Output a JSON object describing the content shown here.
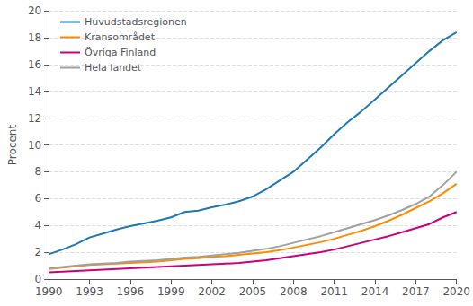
{
  "chart_data": {
    "type": "line",
    "ylabel": "Procent",
    "x": [
      1990,
      1991,
      1992,
      1993,
      1994,
      1995,
      1996,
      1997,
      1998,
      1999,
      2000,
      2001,
      2002,
      2003,
      2004,
      2005,
      2006,
      2007,
      2008,
      2009,
      2010,
      2011,
      2012,
      2013,
      2014,
      2015,
      2016,
      2017,
      2018,
      2019,
      2020
    ],
    "series": [
      {
        "name": "Huvudstadsregionen",
        "color": "#1f78b4",
        "values": [
          1.85,
          2.2,
          2.6,
          3.1,
          3.4,
          3.7,
          3.95,
          4.15,
          4.35,
          4.6,
          5.0,
          5.1,
          5.35,
          5.55,
          5.8,
          6.15,
          6.7,
          7.35,
          8.0,
          8.9,
          9.8,
          10.8,
          11.7,
          12.5,
          13.4,
          14.3,
          15.2,
          16.1,
          17.0,
          17.8,
          18.4
        ]
      },
      {
        "name": "Kransområdet",
        "color": "#ff8c00",
        "values": [
          0.75,
          0.85,
          0.95,
          1.05,
          1.1,
          1.15,
          1.2,
          1.25,
          1.3,
          1.4,
          1.5,
          1.55,
          1.65,
          1.7,
          1.8,
          1.9,
          2.0,
          2.15,
          2.35,
          2.55,
          2.75,
          3.0,
          3.3,
          3.6,
          3.95,
          4.35,
          4.8,
          5.3,
          5.8,
          6.4,
          7.1
        ]
      },
      {
        "name": "Övriga Finland",
        "color": "#cc0077",
        "values": [
          0.5,
          0.55,
          0.6,
          0.65,
          0.7,
          0.75,
          0.8,
          0.85,
          0.9,
          0.95,
          1.0,
          1.05,
          1.1,
          1.15,
          1.2,
          1.3,
          1.4,
          1.55,
          1.7,
          1.85,
          2.0,
          2.2,
          2.45,
          2.7,
          2.95,
          3.2,
          3.5,
          3.8,
          4.1,
          4.6,
          5.0
        ]
      },
      {
        "name": "Hela landet",
        "color": "#a0a0a0",
        "values": [
          0.8,
          0.9,
          1.0,
          1.1,
          1.15,
          1.2,
          1.3,
          1.35,
          1.4,
          1.5,
          1.6,
          1.65,
          1.75,
          1.85,
          1.95,
          2.1,
          2.25,
          2.45,
          2.7,
          2.95,
          3.2,
          3.5,
          3.8,
          4.1,
          4.4,
          4.75,
          5.15,
          5.6,
          6.15,
          7.0,
          8.0
        ]
      }
    ],
    "xlim": [
      1990,
      2020
    ],
    "xticks": [
      1990,
      1993,
      1996,
      1999,
      2002,
      2005,
      2008,
      2011,
      2014,
      2017,
      2020
    ],
    "ylim": [
      0,
      20
    ],
    "yticks": [
      0,
      2,
      4,
      6,
      8,
      10,
      12,
      14,
      16,
      18,
      20
    ],
    "grid": true,
    "legend": "upper left"
  }
}
